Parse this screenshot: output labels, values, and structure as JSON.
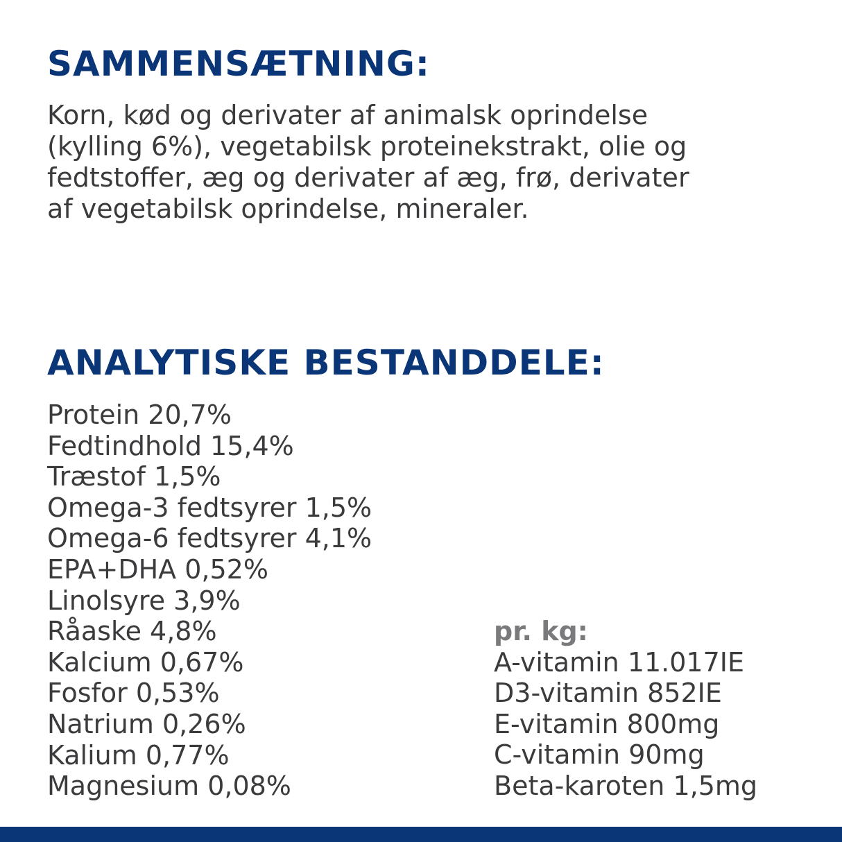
{
  "composition": {
    "heading": "SAMMENSÆTNING:",
    "lines": [
      "Korn, kød og derivater af animalsk oprindelse",
      "(kylling 6%), vegetabilsk proteinekstrakt, olie og",
      "fedtstoffer, æg og derivater af æg, frø, derivater",
      "af vegetabilsk oprindelse, mineraler."
    ]
  },
  "analytical": {
    "heading": "ANALYTISKE BESTANDDELE:",
    "items": [
      "Protein 20,7%",
      "Fedtindhold 15,4%",
      "Træstof 1,5%",
      "Omega-3 fedtsyrer 1,5%",
      "Omega-6 fedtsyrer 4,1%",
      "EPA+DHA 0,52%",
      "Linolsyre 3,9%",
      "Råaske 4,8%",
      "Kalcium 0,67%",
      "Fosfor 0,53%",
      "Natrium 0,26%",
      "Kalium 0,77%",
      "Magnesium 0,08%"
    ],
    "per_kg": {
      "label": "pr. kg:",
      "items": [
        "A-vitamin 11.017IE",
        "D3-vitamin 852IE",
        "E-vitamin 800mg",
        "C-vitamin 90mg",
        "Beta-karoten 1,5mg"
      ]
    }
  },
  "colors": {
    "heading": "#0a3576",
    "text": "#3b3b3e",
    "subheading": "#7a7a7d",
    "footer_bar": "#0a3576"
  }
}
